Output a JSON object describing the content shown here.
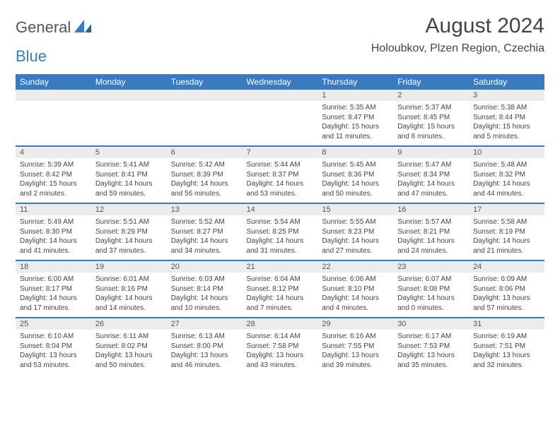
{
  "logo": {
    "text1": "General",
    "text2": "Blue"
  },
  "title": "August 2024",
  "location": "Holoubkov, Plzen Region, Czechia",
  "colors": {
    "accent": "#3a7ac0",
    "header_text": "#ffffff",
    "daynum_bg": "#ececec",
    "text": "#444444",
    "logo_gray": "#555555"
  },
  "day_headers": [
    "Sunday",
    "Monday",
    "Tuesday",
    "Wednesday",
    "Thursday",
    "Friday",
    "Saturday"
  ],
  "weeks": [
    [
      null,
      null,
      null,
      null,
      {
        "n": "1",
        "sr": "5:35 AM",
        "ss": "8:47 PM",
        "dl": "15 hours and 11 minutes."
      },
      {
        "n": "2",
        "sr": "5:37 AM",
        "ss": "8:45 PM",
        "dl": "15 hours and 8 minutes."
      },
      {
        "n": "3",
        "sr": "5:38 AM",
        "ss": "8:44 PM",
        "dl": "15 hours and 5 minutes."
      }
    ],
    [
      {
        "n": "4",
        "sr": "5:39 AM",
        "ss": "8:42 PM",
        "dl": "15 hours and 2 minutes."
      },
      {
        "n": "5",
        "sr": "5:41 AM",
        "ss": "8:41 PM",
        "dl": "14 hours and 59 minutes."
      },
      {
        "n": "6",
        "sr": "5:42 AM",
        "ss": "8:39 PM",
        "dl": "14 hours and 56 minutes."
      },
      {
        "n": "7",
        "sr": "5:44 AM",
        "ss": "8:37 PM",
        "dl": "14 hours and 53 minutes."
      },
      {
        "n": "8",
        "sr": "5:45 AM",
        "ss": "8:36 PM",
        "dl": "14 hours and 50 minutes."
      },
      {
        "n": "9",
        "sr": "5:47 AM",
        "ss": "8:34 PM",
        "dl": "14 hours and 47 minutes."
      },
      {
        "n": "10",
        "sr": "5:48 AM",
        "ss": "8:32 PM",
        "dl": "14 hours and 44 minutes."
      }
    ],
    [
      {
        "n": "11",
        "sr": "5:49 AM",
        "ss": "8:30 PM",
        "dl": "14 hours and 41 minutes."
      },
      {
        "n": "12",
        "sr": "5:51 AM",
        "ss": "8:29 PM",
        "dl": "14 hours and 37 minutes."
      },
      {
        "n": "13",
        "sr": "5:52 AM",
        "ss": "8:27 PM",
        "dl": "14 hours and 34 minutes."
      },
      {
        "n": "14",
        "sr": "5:54 AM",
        "ss": "8:25 PM",
        "dl": "14 hours and 31 minutes."
      },
      {
        "n": "15",
        "sr": "5:55 AM",
        "ss": "8:23 PM",
        "dl": "14 hours and 27 minutes."
      },
      {
        "n": "16",
        "sr": "5:57 AM",
        "ss": "8:21 PM",
        "dl": "14 hours and 24 minutes."
      },
      {
        "n": "17",
        "sr": "5:58 AM",
        "ss": "8:19 PM",
        "dl": "14 hours and 21 minutes."
      }
    ],
    [
      {
        "n": "18",
        "sr": "6:00 AM",
        "ss": "8:17 PM",
        "dl": "14 hours and 17 minutes."
      },
      {
        "n": "19",
        "sr": "6:01 AM",
        "ss": "8:16 PM",
        "dl": "14 hours and 14 minutes."
      },
      {
        "n": "20",
        "sr": "6:03 AM",
        "ss": "8:14 PM",
        "dl": "14 hours and 10 minutes."
      },
      {
        "n": "21",
        "sr": "6:04 AM",
        "ss": "8:12 PM",
        "dl": "14 hours and 7 minutes."
      },
      {
        "n": "22",
        "sr": "6:06 AM",
        "ss": "8:10 PM",
        "dl": "14 hours and 4 minutes."
      },
      {
        "n": "23",
        "sr": "6:07 AM",
        "ss": "8:08 PM",
        "dl": "14 hours and 0 minutes."
      },
      {
        "n": "24",
        "sr": "6:09 AM",
        "ss": "8:06 PM",
        "dl": "13 hours and 57 minutes."
      }
    ],
    [
      {
        "n": "25",
        "sr": "6:10 AM",
        "ss": "8:04 PM",
        "dl": "13 hours and 53 minutes."
      },
      {
        "n": "26",
        "sr": "6:11 AM",
        "ss": "8:02 PM",
        "dl": "13 hours and 50 minutes."
      },
      {
        "n": "27",
        "sr": "6:13 AM",
        "ss": "8:00 PM",
        "dl": "13 hours and 46 minutes."
      },
      {
        "n": "28",
        "sr": "6:14 AM",
        "ss": "7:58 PM",
        "dl": "13 hours and 43 minutes."
      },
      {
        "n": "29",
        "sr": "6:16 AM",
        "ss": "7:55 PM",
        "dl": "13 hours and 39 minutes."
      },
      {
        "n": "30",
        "sr": "6:17 AM",
        "ss": "7:53 PM",
        "dl": "13 hours and 35 minutes."
      },
      {
        "n": "31",
        "sr": "6:19 AM",
        "ss": "7:51 PM",
        "dl": "13 hours and 32 minutes."
      }
    ]
  ],
  "labels": {
    "sunrise": "Sunrise:",
    "sunset": "Sunset:",
    "daylight": "Daylight:"
  }
}
